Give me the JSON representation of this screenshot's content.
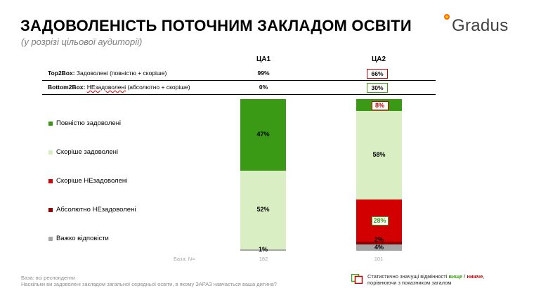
{
  "header": {
    "title": "ЗАДОВОЛЕНІСТЬ ПОТОЧНИМ ЗАКЛАДОМ ОСВІТИ",
    "subtitle": "(у розрізі цільової аудиторії)",
    "logo_text": "Gradus"
  },
  "columns": [
    "ЦА1",
    "ЦА2"
  ],
  "summary_rows": [
    {
      "label_bold": "Top2Box:",
      "label_text": " Задоволені (повністю + скоріше)",
      "values": [
        "99%",
        "66%"
      ],
      "sig": [
        "",
        "lower"
      ]
    },
    {
      "label_bold": "Bottom2Box:",
      "label_text_red": "НЕзадоволені",
      "label_text": " (абсолютно + скоріше)",
      "values": [
        "0%",
        "30%"
      ],
      "sig": [
        "",
        "higher"
      ]
    }
  ],
  "legend": [
    {
      "label": "Повністю задоволені",
      "color": "#3a9a16"
    },
    {
      "label": "Скоріше задоволені",
      "color": "#d9efc3"
    },
    {
      "label": "Скоріше НЕзадоволені",
      "color": "#d20000"
    },
    {
      "label": "Абсолютно НЕзадоволені",
      "color": "#8b0000"
    },
    {
      "label": "Важко відповісти",
      "color": "#a6a6a6"
    }
  ],
  "chart_data": {
    "type": "bar",
    "stacked": true,
    "categories": [
      "ЦА1",
      "ЦА2"
    ],
    "series": [
      {
        "name": "Повністю задоволені",
        "values": [
          47,
          8
        ],
        "labels": [
          "47%",
          "8%"
        ],
        "color": "#3a9a16"
      },
      {
        "name": "Скоріше задоволені",
        "values": [
          52,
          58
        ],
        "labels": [
          "52%",
          "58%"
        ],
        "color": "#d9efc3"
      },
      {
        "name": "Скоріше НЕзадоволені",
        "values": [
          0,
          28
        ],
        "labels": [
          "",
          "28%"
        ],
        "color": "#d20000"
      },
      {
        "name": "Абсолютно НЕзадоволені",
        "values": [
          0,
          2
        ],
        "labels": [
          "",
          "2%"
        ],
        "color": "#8b0000"
      },
      {
        "name": "Важко відповісти",
        "values": [
          1,
          4
        ],
        "labels": [
          "1%",
          "4%"
        ],
        "color": "#a6a6a6"
      }
    ],
    "significance": {
      "ЦА2": {
        "Повністю задоволені": "lower",
        "Скоріше НЕзадоволені": "higher"
      }
    },
    "base_label": "База: N=",
    "base_values": [
      "182",
      "101"
    ]
  },
  "footer": {
    "base_note": "База: всі респонденти",
    "question": "Наскільки ви задоволені закладом загальної середньої освіти, в якому ЗАРАЗ навчається ваша дитина?",
    "sig_line1_prefix": "Статистично значущі відмінності ",
    "sig_higher": "вище",
    "sig_sep": " / ",
    "sig_lower": "нижче",
    "sig_line1_suffix": ",",
    "sig_line2": "порівнюючи з показником загалом",
    "colors": {
      "higher": "#38a010",
      "lower": "#c00000"
    }
  }
}
